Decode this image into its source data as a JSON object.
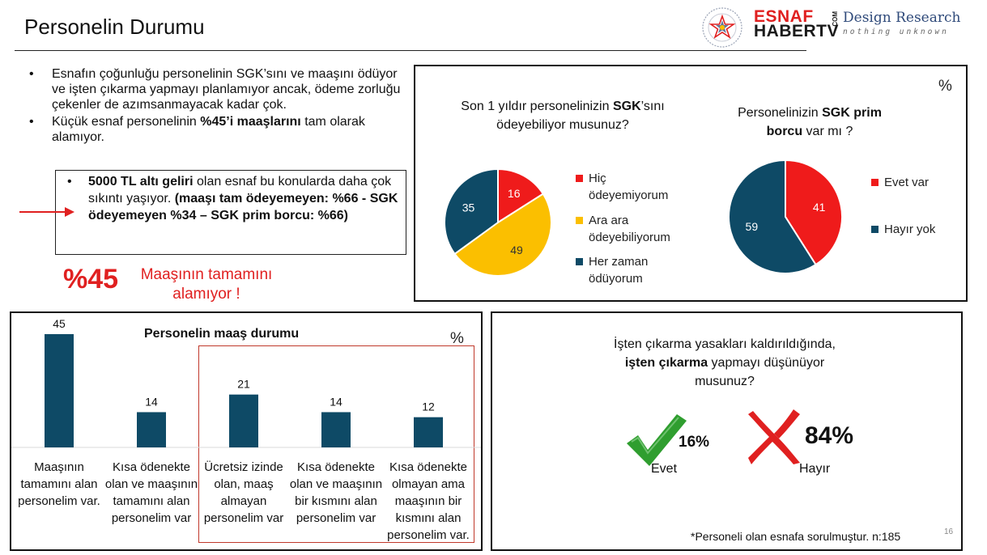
{
  "page": {
    "title": "Personelin Durumu",
    "page_number": "16",
    "percent_sign": "%",
    "footnote": "*Personeli olan esnafa sorulmuştur. n:185"
  },
  "logos": {
    "esnaf_line1": "ESNAF",
    "esnaf_line2": "HABERTV",
    "esnaf_com": ".COM",
    "design_research": "Design Research",
    "design_research_tagline": "nothing unknown"
  },
  "bullets": {
    "b1": "Esnafın çoğunluğu personelinin SGK’sını ve maaşını ödüyor ve işten çıkarma yapmayı planlamıyor ancak, ödeme zorluğu çekenler de azımsanmayacak kadar çok.",
    "b2_pre": "Küçük esnaf personelinin ",
    "b2_bold": "%45’i maaşlarını",
    "b2_post": " tam olarak alamıyor.",
    "b3_bold1": "5000 TL altı geliri",
    "b3_text": " olan esnaf bu konularda daha çok sıkıntı yaşıyor. ",
    "b3_bold2": "(maaşı tam ödeyemeyen:  %66  - SGK ödeyemeyen %34 – SGK prim borcu: %66)"
  },
  "highlight": {
    "big_number": "%45",
    "text": "Maaşının tamamını alamıyor !"
  },
  "colors": {
    "red": "#ef1b1b",
    "yellow": "#fbbf00",
    "navy": "#0e4a66",
    "check_green": "#2f9e2f",
    "cross_red": "#e02020"
  },
  "sgk_pay_question": {
    "line1_pre": "Son 1 yıldır personelinizin ",
    "line1_bold": "SGK",
    "line1_post": "’sını",
    "line2": "ödeyebiliyor musunuz?"
  },
  "sgk_debt_question": {
    "line1_pre": "Personelinizin ",
    "line1_bold": "SGK prim",
    "line2_bold": "borcu",
    "line2_post": " var mı ?"
  },
  "isten_question": {
    "line1": "İşten çıkarma yasakları kaldırıldığında,",
    "line2_bold": "işten çıkarma",
    "line2_post": " yapmayı düşünüyor",
    "line3": "musunuz?"
  },
  "chart_data": [
    {
      "type": "pie",
      "title": "Son 1 yıldır personelinizin SGK’sını ödeyebiliyor musunuz?",
      "unit": "%",
      "slices": [
        {
          "label": "Hiç ödeyemiyorum",
          "value": 16,
          "color": "#ef1b1b"
        },
        {
          "label": "Ara ara ödeyebiliyorum",
          "value": 49,
          "color": "#fbbf00"
        },
        {
          "label": "Her zaman ödüyorum",
          "value": 35,
          "color": "#0e4a66"
        }
      ],
      "legend": "right"
    },
    {
      "type": "pie",
      "title": "Personelinizin SGK prim borcu var mı ?",
      "unit": "%",
      "slices": [
        {
          "label": "Evet var",
          "value": 41,
          "color": "#ef1b1b"
        },
        {
          "label": "Hayır yok",
          "value": 59,
          "color": "#0e4a66"
        }
      ],
      "legend": "right"
    },
    {
      "type": "bar",
      "title": "Personelin maaş durumu",
      "unit": "%",
      "categories": [
        "Maaşının tamamını alan personelim var.",
        "Kısa ödenekte olan ve maaşının tamamını alan personelim var",
        "Ücretsiz izinde olan, maaş almayan personelim var",
        "Kısa ödenekte olan ve maaşının bir kısmını alan personelim var",
        "Kısa ödenekte olmayan ama maaşının bir kısmını alan personelim var."
      ],
      "values": [
        45,
        14,
        21,
        14,
        12
      ],
      "color": "#0e4a66",
      "ylim": [
        0,
        45
      ]
    },
    {
      "type": "pie",
      "title": "İşten çıkarma yasakları kaldırıldığında, işten çıkarma yapmayı düşünüyor musunuz?",
      "unit": "%",
      "slices": [
        {
          "label": "Evet",
          "value": 16,
          "display": "16%",
          "icon": "check-icon"
        },
        {
          "label": "Hayır",
          "value": 84,
          "display": "84%",
          "icon": "cross-icon"
        }
      ]
    }
  ]
}
